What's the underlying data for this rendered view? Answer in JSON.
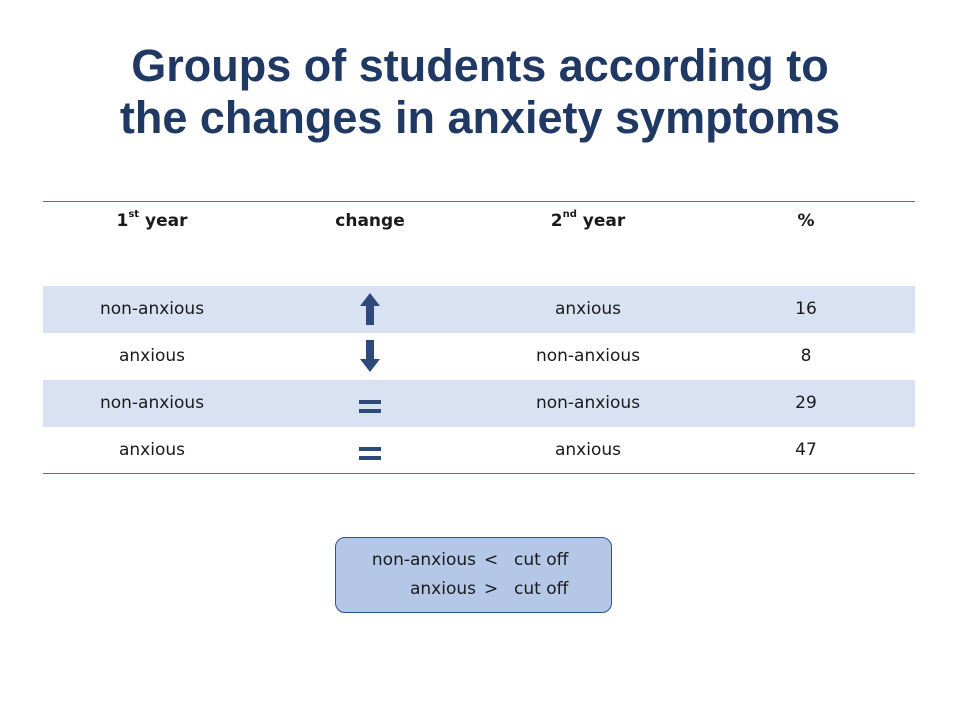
{
  "title": {
    "line1": "Groups of students according to",
    "line2": "the changes in anxiety symptoms"
  },
  "table": {
    "headers": [
      {
        "base": "1",
        "sup": "st",
        "rest": " year"
      },
      {
        "text": "change"
      },
      {
        "base": "2",
        "sup": "nd",
        "rest": " year"
      },
      {
        "text": "%"
      }
    ],
    "rows": [
      {
        "first_year": "non-anxious",
        "change": "up-arrow-icon",
        "second_year": "anxious",
        "percent": "16"
      },
      {
        "first_year": "anxious",
        "change": "down-arrow-icon",
        "second_year": "non-anxious",
        "percent": "8"
      },
      {
        "first_year": "non-anxious",
        "change": "equals-icon",
        "second_year": "non-anxious",
        "percent": "29"
      },
      {
        "first_year": "anxious",
        "change": "equals-icon",
        "second_year": "anxious",
        "percent": "47"
      }
    ]
  },
  "legend": {
    "line1": {
      "label": "non-anxious",
      "operator": "<",
      "value": "cut off"
    },
    "line2": {
      "label": "anxious",
      "operator": ">",
      "value": "cut off"
    }
  },
  "colors": {
    "title": "#1f3864",
    "icon": "#2e4a7a",
    "row_shade": "#d9e2f3",
    "legend_fill": "#b4c7e7",
    "legend_border": "#2f528f"
  }
}
